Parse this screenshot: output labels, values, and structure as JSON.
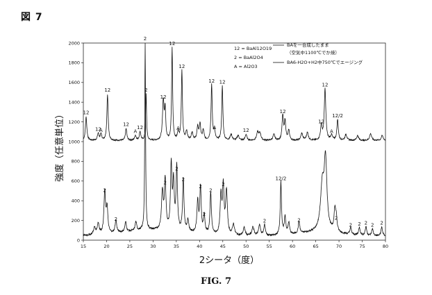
{
  "figure_label": "図 7",
  "caption": "FIG. 7",
  "chart_data": {
    "type": "line",
    "xlabel": "2シータ（度）",
    "ylabel": "強度（任意単位）",
    "xlim": [
      15,
      80
    ],
    "ylim": [
      0,
      2000
    ],
    "x_ticks": [
      "15",
      "20",
      "25",
      "30",
      "35",
      "40",
      "45",
      "50",
      "55",
      "60",
      "65",
      "70",
      "75",
      "80"
    ],
    "x_tick_values": [
      15,
      20,
      25,
      30,
      35,
      40,
      45,
      50,
      55,
      60,
      65,
      70,
      75,
      80
    ],
    "y_ticks": [
      "0",
      "200",
      "400",
      "600",
      "800",
      "1000",
      "1200",
      "1400",
      "1600",
      "1800",
      "2000"
    ],
    "y_tick_values": [
      0,
      200,
      400,
      600,
      800,
      1000,
      1200,
      1400,
      1600,
      1800,
      2000
    ],
    "grid": false,
    "legend": {
      "position": "top-right",
      "key_lines": [
        "12 = BaAl12O19",
        "2 = BaAl2O4",
        "A = Al2O3"
      ],
      "series_lines": [
        "BAを一合成したまま",
        "（空気中1100℃でか焼）",
        "BA6-H2O+H2中750℃でエージング"
      ]
    },
    "series": [
      {
        "baseline": 1010,
        "peaks": [
          {
            "x": 15.6,
            "y": 1250,
            "w": 0.18,
            "label": "12"
          },
          {
            "x": 18.2,
            "y": 1080,
            "w": 0.2,
            "label": "12"
          },
          {
            "x": 18.8,
            "y": 1070,
            "w": 0.2,
            "label": "A"
          },
          {
            "x": 20.2,
            "y": 1480,
            "w": 0.16,
            "label": "12"
          },
          {
            "x": 24.2,
            "y": 1130,
            "w": 0.18,
            "label": "12"
          },
          {
            "x": 26.2,
            "y": 1060,
            "w": 0.2,
            "label": "A"
          },
          {
            "x": 27.2,
            "y": 1100,
            "w": 0.18,
            "label": "12"
          },
          {
            "x": 28.5,
            "y": 1480,
            "w": 0.12,
            "label": "2"
          },
          {
            "x": 32.2,
            "y": 1410,
            "w": 0.2,
            "label": "12"
          },
          {
            "x": 32.6,
            "y": 1300,
            "w": 0.15,
            "label": ""
          },
          {
            "x": 34.1,
            "y": 1950,
            "w": 0.13,
            "label": "12"
          },
          {
            "x": 35.4,
            "y": 1090,
            "w": 0.2,
            "label": "A"
          },
          {
            "x": 36.2,
            "y": 1720,
            "w": 0.14,
            "label": "12"
          },
          {
            "x": 37.2,
            "y": 1100,
            "w": 0.22,
            "label": ""
          },
          {
            "x": 38.4,
            "y": 1090,
            "w": 0.22,
            "label": ""
          },
          {
            "x": 39.6,
            "y": 1140,
            "w": 0.2,
            "label": ""
          },
          {
            "x": 40.1,
            "y": 1170,
            "w": 0.18,
            "label": ""
          },
          {
            "x": 40.8,
            "y": 1110,
            "w": 0.2,
            "label": ""
          },
          {
            "x": 42.6,
            "y": 1570,
            "w": 0.15,
            "label": "12"
          },
          {
            "x": 43.2,
            "y": 1100,
            "w": 0.2,
            "label": "A"
          },
          {
            "x": 44.9,
            "y": 1560,
            "w": 0.15,
            "label": "12"
          },
          {
            "x": 46.8,
            "y": 1070,
            "w": 0.25,
            "label": ""
          },
          {
            "x": 48.3,
            "y": 1060,
            "w": 0.25,
            "label": ""
          },
          {
            "x": 50.0,
            "y": 1070,
            "w": 0.22,
            "label": "12"
          },
          {
            "x": 52.5,
            "y": 1090,
            "w": 0.25,
            "label": ""
          },
          {
            "x": 53.0,
            "y": 1080,
            "w": 0.25,
            "label": ""
          },
          {
            "x": 56.0,
            "y": 1070,
            "w": 0.25,
            "label": ""
          },
          {
            "x": 57.9,
            "y": 1260,
            "w": 0.18,
            "label": "12"
          },
          {
            "x": 58.4,
            "y": 1200,
            "w": 0.18,
            "label": ""
          },
          {
            "x": 59.2,
            "y": 1110,
            "w": 0.2,
            "label": ""
          },
          {
            "x": 62.0,
            "y": 1080,
            "w": 0.25,
            "label": ""
          },
          {
            "x": 63.2,
            "y": 1090,
            "w": 0.25,
            "label": ""
          },
          {
            "x": 66.2,
            "y": 1160,
            "w": 0.2,
            "label": "12"
          },
          {
            "x": 67.0,
            "y": 1530,
            "w": 0.2,
            "label": "12"
          },
          {
            "x": 68.4,
            "y": 1060,
            "w": 0.25,
            "label": "A"
          },
          {
            "x": 69.7,
            "y": 1220,
            "w": 0.18,
            "label": "12/2"
          },
          {
            "x": 71.5,
            "y": 1070,
            "w": 0.25,
            "label": ""
          },
          {
            "x": 74.0,
            "y": 1060,
            "w": 0.25,
            "label": ""
          },
          {
            "x": 76.8,
            "y": 1080,
            "w": 0.25,
            "label": ""
          },
          {
            "x": 79.3,
            "y": 1060,
            "w": 0.25,
            "label": ""
          }
        ]
      },
      {
        "baseline": 40,
        "peaks": [
          {
            "x": 17.4,
            "y": 110,
            "w": 0.25,
            "label": ""
          },
          {
            "x": 18.2,
            "y": 150,
            "w": 0.25,
            "label": ""
          },
          {
            "x": 19.6,
            "y": 460,
            "w": 0.2,
            "label": "2"
          },
          {
            "x": 20.1,
            "y": 300,
            "w": 0.2,
            "label": ""
          },
          {
            "x": 22.0,
            "y": 170,
            "w": 0.2,
            "label": "2"
          },
          {
            "x": 24.1,
            "y": 140,
            "w": 0.2,
            "label": ""
          },
          {
            "x": 26.3,
            "y": 130,
            "w": 0.2,
            "label": ""
          },
          {
            "x": 28.3,
            "y": 2000,
            "w": 0.1,
            "label": "2"
          },
          {
            "x": 32.0,
            "y": 420,
            "w": 0.22,
            "label": ""
          },
          {
            "x": 32.6,
            "y": 540,
            "w": 0.2,
            "label": "2"
          },
          {
            "x": 33.9,
            "y": 700,
            "w": 0.18,
            "label": ""
          },
          {
            "x": 34.4,
            "y": 510,
            "w": 0.18,
            "label": ""
          },
          {
            "x": 35.1,
            "y": 680,
            "w": 0.18,
            "label": "2"
          },
          {
            "x": 36.5,
            "y": 570,
            "w": 0.18,
            "label": "2"
          },
          {
            "x": 37.5,
            "y": 160,
            "w": 0.2,
            "label": ""
          },
          {
            "x": 39.6,
            "y": 360,
            "w": 0.2,
            "label": ""
          },
          {
            "x": 40.2,
            "y": 500,
            "w": 0.18,
            "label": "2"
          },
          {
            "x": 41.0,
            "y": 220,
            "w": 0.2,
            "label": "2"
          },
          {
            "x": 42.4,
            "y": 460,
            "w": 0.18,
            "label": "2"
          },
          {
            "x": 44.6,
            "y": 420,
            "w": 0.2,
            "label": ""
          },
          {
            "x": 45.1,
            "y": 520,
            "w": 0.2,
            "label": "2"
          },
          {
            "x": 45.8,
            "y": 480,
            "w": 0.22,
            "label": ""
          },
          {
            "x": 47.3,
            "y": 150,
            "w": 0.25,
            "label": ""
          },
          {
            "x": 49.6,
            "y": 120,
            "w": 0.25,
            "label": ""
          },
          {
            "x": 51.5,
            "y": 130,
            "w": 0.25,
            "label": ""
          },
          {
            "x": 52.9,
            "y": 150,
            "w": 0.25,
            "label": ""
          },
          {
            "x": 54.0,
            "y": 150,
            "w": 0.2,
            "label": "2"
          },
          {
            "x": 57.5,
            "y": 580,
            "w": 0.16,
            "label": "12/2"
          },
          {
            "x": 58.4,
            "y": 220,
            "w": 0.2,
            "label": ""
          },
          {
            "x": 59.2,
            "y": 160,
            "w": 0.2,
            "label": ""
          },
          {
            "x": 61.4,
            "y": 160,
            "w": 0.2,
            "label": "2"
          },
          {
            "x": 66.4,
            "y": 480,
            "w": 0.45,
            "label": ""
          },
          {
            "x": 67.1,
            "y": 740,
            "w": 0.35,
            "label": ""
          },
          {
            "x": 69.1,
            "y": 250,
            "w": 0.2,
            "label": ""
          },
          {
            "x": 69.4,
            "y": 180,
            "w": 0.2,
            "label": "2"
          },
          {
            "x": 72.5,
            "y": 110,
            "w": 0.2,
            "label": "2"
          },
          {
            "x": 74.4,
            "y": 120,
            "w": 0.2,
            "label": "2"
          },
          {
            "x": 75.8,
            "y": 130,
            "w": 0.2,
            "label": "2"
          },
          {
            "x": 77.2,
            "y": 110,
            "w": 0.2,
            "label": "2"
          },
          {
            "x": 79.2,
            "y": 130,
            "w": 0.2,
            "label": "2"
          }
        ]
      }
    ]
  }
}
